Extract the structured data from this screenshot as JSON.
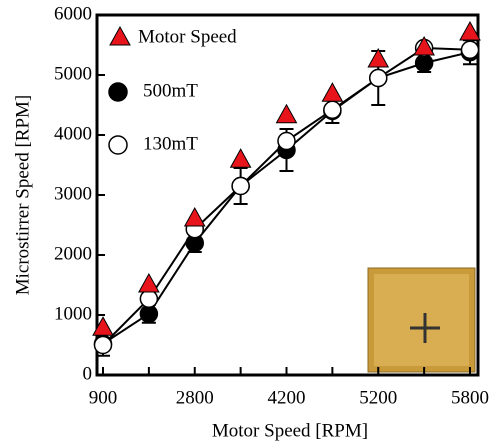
{
  "chart_data": {
    "type": "line",
    "x_label": "Motor Speed [RPM]",
    "y_label": "Microstirrer Speed [RPM]",
    "categories": [
      "900",
      null,
      "2800",
      null,
      "4200",
      null,
      "5200",
      null,
      "5800"
    ],
    "ylim": [
      0,
      6000
    ],
    "yticks": [
      0,
      1000,
      2000,
      3000,
      4000,
      5000,
      6000
    ],
    "series": [
      {
        "name": "Motor Speed",
        "color": "#e8141c",
        "marker": "triangle",
        "line": false,
        "values": [
          780,
          1500,
          2600,
          3580,
          4320,
          4680,
          5250,
          5450,
          5700
        ]
      },
      {
        "name": "500mT",
        "color": "#000000",
        "marker": "filled",
        "line": true,
        "values": [
          520,
          1020,
          2200,
          3150,
          3750,
          4400,
          4950,
          5200,
          5380
        ],
        "errors": [
          200,
          150,
          150,
          300,
          350,
          200,
          450,
          150,
          200
        ]
      },
      {
        "name": "130mT",
        "color": "#000000",
        "marker": "open",
        "line": true,
        "values": [
          500,
          1270,
          2430,
          3150,
          3900,
          4420,
          4950,
          5450,
          5420
        ]
      }
    ]
  }
}
